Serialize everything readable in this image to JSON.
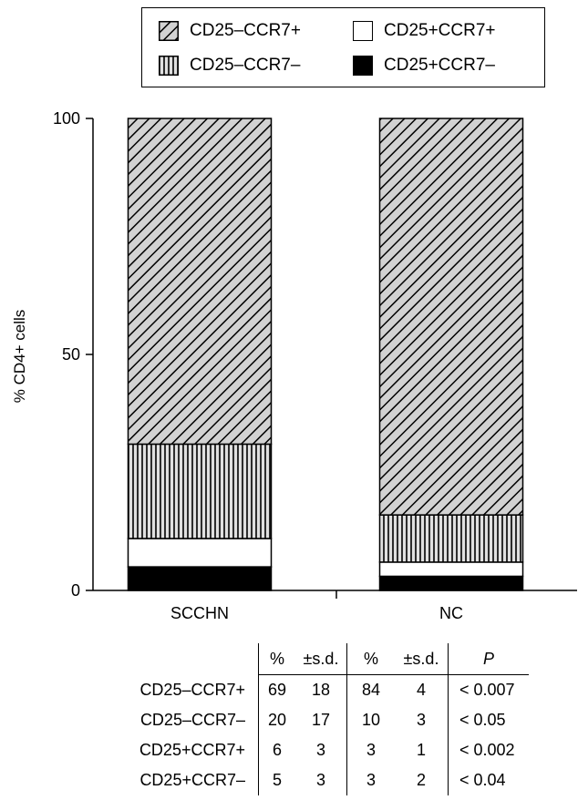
{
  "chart_data": {
    "type": "bar",
    "stacked": true,
    "categories": [
      "SCCHN",
      "NC"
    ],
    "series": [
      {
        "name": "CD25+CCR7–",
        "values": [
          5,
          3
        ],
        "fill": "solid-black"
      },
      {
        "name": "CD25+CCR7+",
        "values": [
          6,
          3
        ],
        "fill": "white"
      },
      {
        "name": "CD25–CCR7–",
        "values": [
          20,
          10
        ],
        "fill": "vertical-lines"
      },
      {
        "name": "CD25–CCR7+",
        "values": [
          69,
          84
        ],
        "fill": "diagonal-lines"
      }
    ],
    "ylabel": "% CD4+ cells",
    "ylim": [
      0,
      100
    ],
    "yticks": [
      "0",
      "50",
      "100"
    ],
    "legend": {
      "position": "top",
      "entries": [
        "CD25–CCR7+",
        "CD25+CCR7+",
        "CD25–CCR7–",
        "CD25+CCR7–"
      ]
    },
    "table": {
      "headers": [
        "%",
        "±s.d.",
        "%",
        "±s.d.",
        "P"
      ],
      "rows": [
        {
          "label": "CD25–CCR7+",
          "cells": [
            "69",
            "18",
            "84",
            "4",
            "< 0.007"
          ]
        },
        {
          "label": "CD25–CCR7–",
          "cells": [
            "20",
            "17",
            "10",
            "3",
            "< 0.05"
          ]
        },
        {
          "label": "CD25+CCR7+",
          "cells": [
            "6",
            "3",
            "3",
            "1",
            "< 0.002"
          ]
        },
        {
          "label": "CD25+CCR7–",
          "cells": [
            "5",
            "3",
            "3",
            "2",
            "< 0.04"
          ]
        }
      ]
    }
  }
}
